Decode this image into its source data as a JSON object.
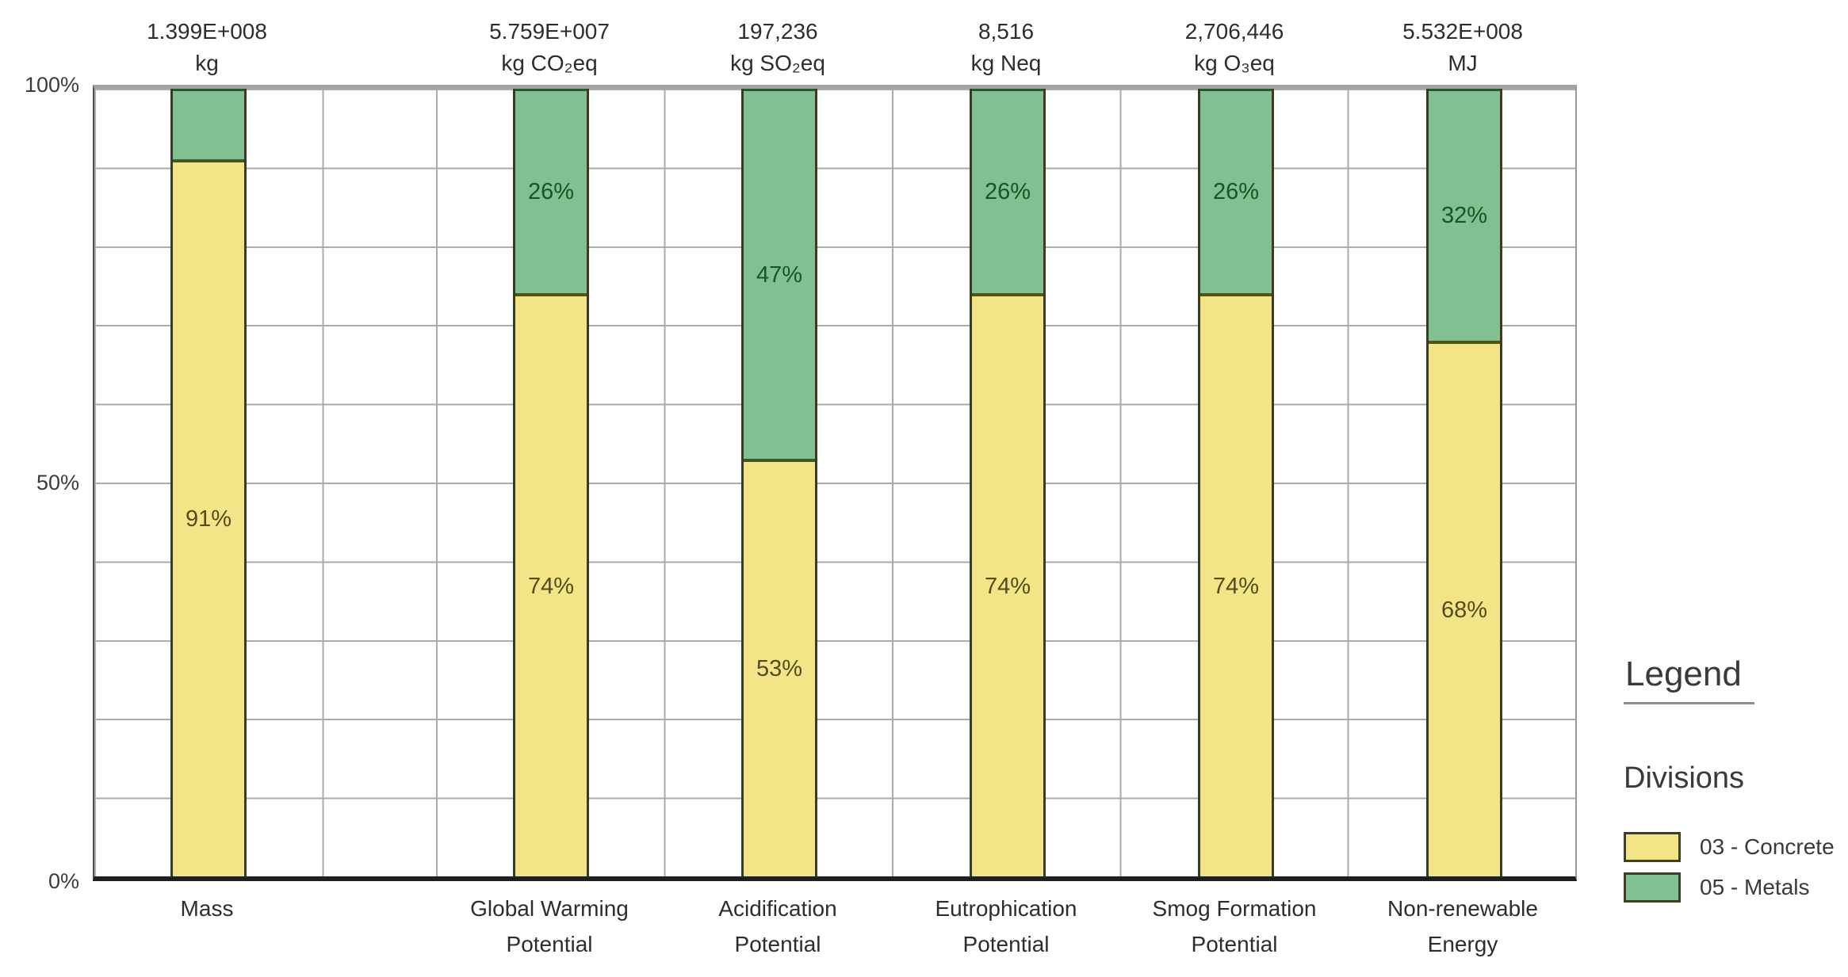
{
  "chart_data": {
    "type": "bar",
    "stacked": true,
    "normalized": "percent",
    "title": "",
    "xlabel": "",
    "ylabel": "",
    "ylim": [
      0,
      100
    ],
    "y_ticks": [
      "100%",
      "50%",
      "0%"
    ],
    "grid": {
      "horizontal_step_pct": 10,
      "vertical_columns": 13,
      "visible": true
    },
    "legend_position": "right",
    "categories": [
      {
        "label_lines": [
          "Mass"
        ],
        "total": "1.399E+008",
        "unit": "kg",
        "concrete_pct": 91,
        "metals_pct": 9,
        "concrete_label": "91%",
        "metals_label": ""
      },
      {
        "label_lines": [
          "Global Warming",
          "Potential"
        ],
        "total": "5.759E+007",
        "unit": "kg CO₂eq",
        "concrete_pct": 74,
        "metals_pct": 26,
        "concrete_label": "74%",
        "metals_label": "26%"
      },
      {
        "label_lines": [
          "Acidification",
          "Potential"
        ],
        "total": "197,236",
        "unit": "kg SO₂eq",
        "concrete_pct": 53,
        "metals_pct": 47,
        "concrete_label": "53%",
        "metals_label": "47%"
      },
      {
        "label_lines": [
          "Eutrophication",
          "Potential"
        ],
        "total": "8,516",
        "unit": "kg Neq",
        "concrete_pct": 74,
        "metals_pct": 26,
        "concrete_label": "74%",
        "metals_label": "26%"
      },
      {
        "label_lines": [
          "Smog Formation",
          "Potential"
        ],
        "total": "2,706,446",
        "unit": "kg O₃eq",
        "concrete_pct": 74,
        "metals_pct": 26,
        "concrete_label": "74%",
        "metals_label": "26%"
      },
      {
        "label_lines": [
          "Non-renewable",
          "Energy"
        ],
        "total": "5.532E+008",
        "unit": "MJ",
        "concrete_pct": 68,
        "metals_pct": 32,
        "concrete_label": "68%",
        "metals_label": "32%"
      }
    ],
    "series": [
      {
        "name": "03 - Concrete",
        "color": "#f3e587",
        "values": [
          91,
          74,
          53,
          74,
          74,
          68
        ]
      },
      {
        "name": "05 - Metals",
        "color": "#81c090",
        "values": [
          9,
          26,
          47,
          26,
          26,
          32
        ]
      }
    ]
  },
  "legend": {
    "title": "Legend",
    "group_title": "Divisions",
    "items": [
      {
        "label": "03 - Concrete",
        "color": "#f3e587"
      },
      {
        "label": "05 - Metals",
        "color": "#81c090"
      }
    ]
  }
}
